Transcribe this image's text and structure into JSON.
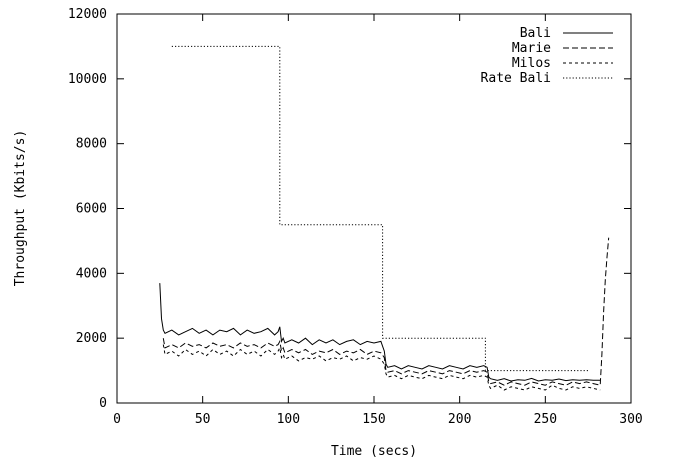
{
  "chart_data": {
    "type": "line",
    "title": "",
    "xlabel": "Time (secs)",
    "ylabel": "Throughput (Kbits/s)",
    "xlim": [
      0,
      300
    ],
    "ylim": [
      0,
      12000
    ],
    "xticks": [
      0,
      50,
      100,
      150,
      200,
      250,
      300
    ],
    "yticks": [
      0,
      2000,
      4000,
      6000,
      8000,
      10000,
      12000
    ],
    "grid": false,
    "legend_position": "top-right",
    "series": [
      {
        "name": "Bali",
        "style": "solid",
        "x": [
          25,
          26,
          27,
          28,
          32,
          36,
          40,
          44,
          48,
          52,
          56,
          60,
          64,
          68,
          72,
          76,
          80,
          84,
          88,
          92,
          94,
          95,
          96,
          97,
          98,
          102,
          106,
          110,
          114,
          118,
          122,
          126,
          130,
          134,
          138,
          142,
          146,
          150,
          154,
          156,
          157,
          158,
          162,
          166,
          170,
          174,
          178,
          182,
          186,
          190,
          194,
          198,
          202,
          206,
          210,
          214,
          216,
          217,
          218,
          222,
          226,
          230,
          234,
          238,
          242,
          246,
          250,
          254,
          258,
          262,
          266,
          270,
          274,
          278,
          282
        ],
        "y": [
          3700,
          2600,
          2250,
          2150,
          2250,
          2100,
          2200,
          2300,
          2150,
          2250,
          2100,
          2250,
          2200,
          2300,
          2100,
          2250,
          2150,
          2200,
          2300,
          2100,
          2200,
          2350,
          1900,
          2000,
          1850,
          1950,
          1850,
          2000,
          1800,
          1950,
          1850,
          1950,
          1800,
          1900,
          1950,
          1800,
          1900,
          1850,
          1900,
          1600,
          1200,
          1100,
          1150,
          1050,
          1150,
          1100,
          1050,
          1150,
          1100,
          1050,
          1150,
          1100,
          1050,
          1150,
          1100,
          1150,
          1100,
          800,
          750,
          700,
          750,
          680,
          720,
          700,
          760,
          680,
          720,
          700,
          740,
          690,
          720,
          700,
          720,
          700,
          700
        ]
      },
      {
        "name": "Marie",
        "style": "dashed",
        "x": [
          27,
          28,
          32,
          36,
          40,
          44,
          48,
          52,
          56,
          60,
          64,
          68,
          72,
          76,
          80,
          84,
          88,
          92,
          94,
          95,
          96,
          97,
          98,
          102,
          106,
          110,
          114,
          118,
          122,
          126,
          130,
          134,
          138,
          142,
          146,
          150,
          154,
          156,
          157,
          158,
          162,
          166,
          170,
          174,
          178,
          182,
          186,
          190,
          194,
          198,
          202,
          206,
          210,
          214,
          216,
          217,
          218,
          222,
          226,
          230,
          234,
          238,
          242,
          246,
          250,
          254,
          258,
          262,
          266,
          270,
          274,
          278,
          282,
          283,
          284,
          285,
          286,
          287
        ],
        "y": [
          2000,
          1700,
          1800,
          1700,
          1850,
          1750,
          1800,
          1700,
          1850,
          1750,
          1800,
          1700,
          1850,
          1750,
          1800,
          1700,
          1850,
          1750,
          1800,
          1900,
          1600,
          1700,
          1550,
          1650,
          1550,
          1650,
          1500,
          1600,
          1550,
          1650,
          1500,
          1600,
          1550,
          1650,
          1500,
          1600,
          1550,
          1400,
          1000,
          950,
          1000,
          900,
          1000,
          950,
          900,
          1000,
          950,
          900,
          1000,
          950,
          900,
          1000,
          950,
          1000,
          950,
          650,
          600,
          650,
          550,
          650,
          600,
          550,
          650,
          600,
          550,
          650,
          600,
          550,
          650,
          600,
          650,
          600,
          550,
          1500,
          2800,
          3800,
          4500,
          5100
        ]
      },
      {
        "name": "Milos",
        "style": "short-dashed",
        "x": [
          27,
          28,
          32,
          36,
          40,
          44,
          48,
          52,
          56,
          60,
          64,
          68,
          72,
          76,
          80,
          84,
          88,
          92,
          94,
          95,
          96,
          97,
          98,
          102,
          106,
          110,
          114,
          118,
          122,
          126,
          130,
          134,
          138,
          142,
          146,
          150,
          154,
          156,
          157,
          158,
          162,
          166,
          170,
          174,
          178,
          182,
          186,
          190,
          194,
          198,
          202,
          206,
          210,
          214,
          216,
          217,
          218,
          222,
          226,
          230,
          234,
          238,
          242,
          246,
          250,
          254,
          258,
          262,
          266,
          270,
          274,
          278,
          282
        ],
        "y": [
          1800,
          1500,
          1600,
          1450,
          1650,
          1500,
          1600,
          1450,
          1650,
          1500,
          1600,
          1450,
          1650,
          1500,
          1600,
          1450,
          1650,
          1500,
          1600,
          1700,
          1400,
          1500,
          1350,
          1450,
          1300,
          1400,
          1350,
          1450,
          1300,
          1400,
          1350,
          1450,
          1300,
          1400,
          1350,
          1450,
          1350,
          1200,
          900,
          800,
          850,
          750,
          850,
          800,
          750,
          850,
          800,
          750,
          850,
          800,
          750,
          850,
          800,
          850,
          800,
          550,
          450,
          550,
          400,
          500,
          450,
          400,
          500,
          450,
          400,
          550,
          450,
          400,
          500,
          450,
          500,
          450,
          400
        ]
      },
      {
        "name": "Rate Bali",
        "style": "dotted",
        "x": [
          32,
          95,
          95,
          155,
          155,
          215,
          215,
          275
        ],
        "y": [
          11000,
          11000,
          5500,
          5500,
          2000,
          2000,
          1000,
          1000
        ]
      }
    ]
  }
}
